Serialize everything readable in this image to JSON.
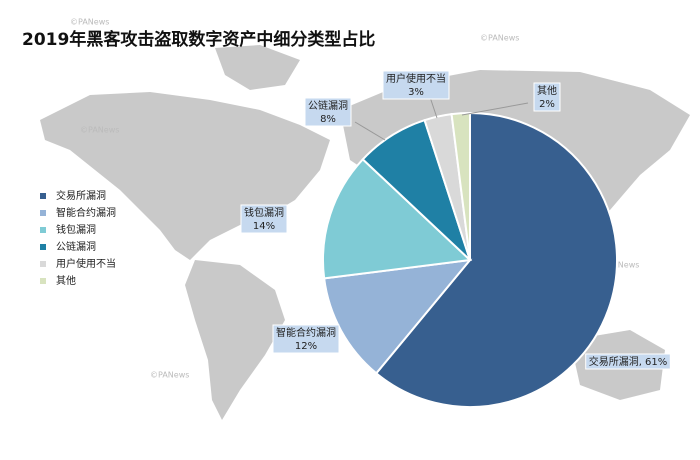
{
  "chart_data": {
    "type": "pie",
    "title": "2019年黑客攻击盗取数字资产中细分类型占比",
    "watermark": "©PANews",
    "categories": [
      "交易所漏洞",
      "智能合约漏洞",
      "钱包漏洞",
      "公链漏洞",
      "用户使用不当",
      "其他"
    ],
    "values": [
      61,
      12,
      14,
      8,
      3,
      2
    ],
    "value_labels": [
      "交易所漏洞, 61%",
      "12%",
      "14%",
      "8%",
      "3%",
      "2%"
    ],
    "colors": [
      "#375f8f",
      "#95b3d7",
      "#7fcbd5",
      "#1f80a5",
      "#d9d9d9",
      "#d8e3bf"
    ],
    "legend": "left"
  }
}
